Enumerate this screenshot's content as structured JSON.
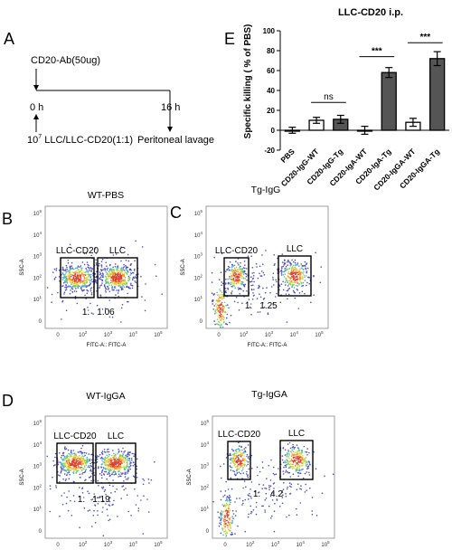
{
  "panel_a": {
    "letter": "A",
    "treatment": "CD20-Ab(50ug)",
    "time_start": "0 h",
    "time_end": "16 h",
    "cells_base": "10",
    "cells_exp": "7",
    "cells_rest": " LLC/LLC-CD20(1:1)",
    "endpoint": "Peritoneal lavage"
  },
  "panel_e": {
    "letter": "E",
    "title": "LLC-CD20 i.p.",
    "ylabel": "Specific killing ( % of PBS)",
    "sig_ns": "ns",
    "sig_iga": "***",
    "sig_igga": "***"
  },
  "chart_data": {
    "type": "bar",
    "title": "LLC-CD20 i.p.",
    "ylabel": "Specific killing ( % of PBS)",
    "xlabel": "",
    "ylim": [
      -20,
      100
    ],
    "yticks": [
      -20,
      0,
      20,
      40,
      60,
      80,
      100
    ],
    "categories": [
      "PBS",
      "CD20-IgG-WT",
      "CD20-IgG-Tg",
      "CD20-IgA-WT",
      "CD20-IgA-Tg",
      "CD20-IgGA-WT",
      "CD20-IgGA-Tg"
    ],
    "values": [
      0,
      10,
      11,
      0,
      58,
      8,
      72
    ],
    "errors": [
      3,
      3,
      4,
      4,
      5,
      4,
      7
    ],
    "fill": [
      "white",
      "white",
      "#555555",
      "white",
      "#555555",
      "white",
      "#555555"
    ],
    "yticklabels": [
      "-20",
      "0",
      "20",
      "40",
      "60",
      "80",
      "100"
    ]
  },
  "facs": [
    {
      "letter": "B",
      "title": "WT-PBS",
      "gate1": "LLC-CD20",
      "gate2": "LLC",
      "ratio_a": "1:",
      "ratio_b": "1.06",
      "ylabel": "SSC-A",
      "xlabel": "FITC-A:: FITC-A"
    },
    {
      "letter": "C",
      "title": "Tg-IgG",
      "gate1": "LLC-CD20",
      "gate2": "LLC",
      "ratio_a": "1:",
      "ratio_b": "1.25",
      "ylabel": "SSC-A",
      "xlabel": "FITC-A:: FITC-A"
    },
    {
      "letter": "D",
      "title": "WT-IgGA",
      "gate1": "LLC-CD20",
      "gate2": "LLC",
      "ratio_a": "1:",
      "ratio_b": "1.19",
      "ylabel": "SSC-A",
      "xlabel": "FITC-A:: FITC-A"
    },
    {
      "letter": "",
      "title": "Tg-IgGA",
      "gate1": "LLC-CD20",
      "gate2": "LLC",
      "ratio_a": "1:",
      "ratio_b": "4.2",
      "ylabel": "SSC-A",
      "xlabel": "FITC-A:: FITC-A"
    }
  ],
  "facs_axis": {
    "yticks": [
      "10",
      "10",
      "10",
      "10",
      "10",
      "0"
    ],
    "yexps": [
      "5",
      "4",
      "3",
      "2",
      "1",
      ""
    ],
    "xticks": [
      "0",
      "10",
      "10",
      "10",
      "10"
    ],
    "xexps": [
      "",
      "2",
      "3",
      "4",
      "5"
    ]
  }
}
